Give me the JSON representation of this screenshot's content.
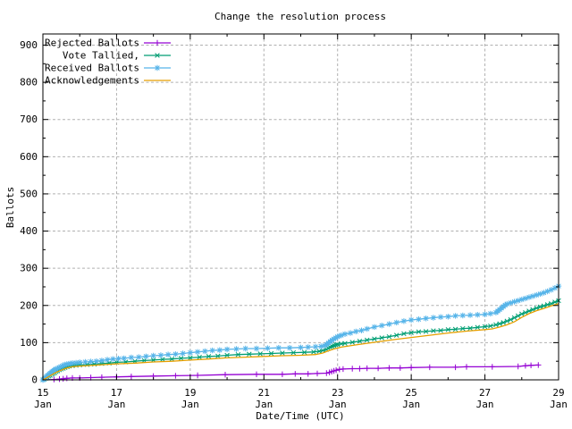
{
  "chart_data": {
    "type": "line",
    "title": "Change the resolution process",
    "xlabel": "Date/Time (UTC)",
    "ylabel": "Ballots",
    "xlim": [
      15,
      29
    ],
    "ylim": [
      0,
      930
    ],
    "grid": true,
    "legend_position": "top-left",
    "background": "#ffffff",
    "grid_color": "#b0b0b0",
    "x_ticks": [
      {
        "v": 15,
        "label": "15",
        "sublabel": "Jan"
      },
      {
        "v": 17,
        "label": "17",
        "sublabel": "Jan"
      },
      {
        "v": 19,
        "label": "19",
        "sublabel": "Jan"
      },
      {
        "v": 21,
        "label": "21",
        "sublabel": "Jan"
      },
      {
        "v": 23,
        "label": "23",
        "sublabel": "Jan"
      },
      {
        "v": 25,
        "label": "25",
        "sublabel": "Jan"
      },
      {
        "v": 27,
        "label": "27",
        "sublabel": "Jan"
      },
      {
        "v": 29,
        "label": "29",
        "sublabel": "Jan"
      }
    ],
    "x_minor_days": [
      16,
      18,
      20,
      22,
      24,
      26,
      28
    ],
    "x_grid_days": [
      17,
      19,
      21,
      23,
      25,
      27
    ],
    "y_ticks": [
      0,
      100,
      200,
      300,
      400,
      500,
      600,
      700,
      800,
      900
    ],
    "y_minor_ticks": [
      50,
      150,
      250,
      350,
      450,
      550,
      650,
      750,
      850
    ],
    "series": [
      {
        "name": "Rejected Ballots",
        "color": "#9400d3",
        "marker": "plus",
        "points": [
          [
            15.0,
            0
          ],
          [
            15.3,
            1
          ],
          [
            15.45,
            2
          ],
          [
            15.55,
            3
          ],
          [
            15.65,
            4
          ],
          [
            15.8,
            5
          ],
          [
            16.0,
            5
          ],
          [
            16.3,
            6
          ],
          [
            16.6,
            7
          ],
          [
            17.0,
            8
          ],
          [
            17.4,
            9
          ],
          [
            18.0,
            10
          ],
          [
            18.6,
            11
          ],
          [
            19.2,
            12
          ],
          [
            19.95,
            14
          ],
          [
            20.8,
            15
          ],
          [
            21.5,
            15
          ],
          [
            21.85,
            16
          ],
          [
            22.2,
            16
          ],
          [
            22.45,
            17
          ],
          [
            22.7,
            18
          ],
          [
            22.78,
            20
          ],
          [
            22.84,
            22
          ],
          [
            22.9,
            24
          ],
          [
            22.96,
            26
          ],
          [
            23.05,
            28
          ],
          [
            23.15,
            29
          ],
          [
            23.4,
            30
          ],
          [
            23.6,
            30
          ],
          [
            23.8,
            31
          ],
          [
            24.1,
            31
          ],
          [
            24.4,
            32
          ],
          [
            24.7,
            32
          ],
          [
            25.0,
            33
          ],
          [
            25.5,
            34
          ],
          [
            26.2,
            34
          ],
          [
            26.5,
            35
          ],
          [
            27.2,
            35
          ],
          [
            27.9,
            36
          ],
          [
            28.1,
            38
          ],
          [
            28.25,
            39
          ],
          [
            28.45,
            40
          ]
        ]
      },
      {
        "name": "Vote Tallied,",
        "color": "#009e73",
        "marker": "cross",
        "points": [
          [
            15.0,
            0
          ],
          [
            15.04,
            2
          ],
          [
            15.08,
            4
          ],
          [
            15.12,
            7
          ],
          [
            15.16,
            10
          ],
          [
            15.2,
            12
          ],
          [
            15.24,
            15
          ],
          [
            15.28,
            17
          ],
          [
            15.32,
            19
          ],
          [
            15.36,
            22
          ],
          [
            15.4,
            24
          ],
          [
            15.45,
            27
          ],
          [
            15.5,
            29
          ],
          [
            15.55,
            31
          ],
          [
            15.6,
            33
          ],
          [
            15.66,
            35
          ],
          [
            15.72,
            37
          ],
          [
            15.8,
            38
          ],
          [
            15.9,
            39
          ],
          [
            16.0,
            40
          ],
          [
            16.2,
            41
          ],
          [
            16.4,
            42
          ],
          [
            16.6,
            44
          ],
          [
            16.8,
            45
          ],
          [
            17.0,
            47
          ],
          [
            17.25,
            48
          ],
          [
            17.5,
            50
          ],
          [
            17.75,
            52
          ],
          [
            18.0,
            53
          ],
          [
            18.25,
            55
          ],
          [
            18.5,
            56
          ],
          [
            18.75,
            58
          ],
          [
            19.0,
            59
          ],
          [
            19.25,
            61
          ],
          [
            19.5,
            63
          ],
          [
            19.75,
            64
          ],
          [
            20.0,
            66
          ],
          [
            20.3,
            68
          ],
          [
            20.6,
            69
          ],
          [
            20.9,
            70
          ],
          [
            21.2,
            71
          ],
          [
            21.5,
            72
          ],
          [
            21.8,
            73
          ],
          [
            22.1,
            74
          ],
          [
            22.35,
            75
          ],
          [
            22.5,
            77
          ],
          [
            22.6,
            79
          ],
          [
            22.7,
            82
          ],
          [
            22.75,
            85
          ],
          [
            22.8,
            88
          ],
          [
            22.85,
            90
          ],
          [
            22.9,
            92
          ],
          [
            22.95,
            94
          ],
          [
            23.0,
            95
          ],
          [
            23.1,
            97
          ],
          [
            23.2,
            98
          ],
          [
            23.4,
            101
          ],
          [
            23.6,
            104
          ],
          [
            23.8,
            107
          ],
          [
            24.0,
            110
          ],
          [
            24.2,
            113
          ],
          [
            24.4,
            116
          ],
          [
            24.6,
            120
          ],
          [
            24.8,
            124
          ],
          [
            25.0,
            127
          ],
          [
            25.2,
            129
          ],
          [
            25.4,
            130
          ],
          [
            25.6,
            132
          ],
          [
            25.8,
            133
          ],
          [
            26.0,
            135
          ],
          [
            26.2,
            136
          ],
          [
            26.4,
            138
          ],
          [
            26.6,
            139
          ],
          [
            26.8,
            141
          ],
          [
            27.0,
            143
          ],
          [
            27.15,
            145
          ],
          [
            27.3,
            148
          ],
          [
            27.4,
            151
          ],
          [
            27.5,
            154
          ],
          [
            27.6,
            158
          ],
          [
            27.7,
            162
          ],
          [
            27.8,
            167
          ],
          [
            27.9,
            172
          ],
          [
            28.0,
            177
          ],
          [
            28.1,
            181
          ],
          [
            28.2,
            185
          ],
          [
            28.3,
            189
          ],
          [
            28.4,
            193
          ],
          [
            28.5,
            196
          ],
          [
            28.6,
            199
          ],
          [
            28.7,
            202
          ],
          [
            28.8,
            205
          ],
          [
            28.9,
            209
          ],
          [
            29.0,
            213
          ]
        ]
      },
      {
        "name": "Received Ballots",
        "color": "#56b4e9",
        "marker": "asterisk",
        "points": [
          [
            15.0,
            0
          ],
          [
            15.03,
            2
          ],
          [
            15.06,
            5
          ],
          [
            15.09,
            8
          ],
          [
            15.12,
            11
          ],
          [
            15.15,
            13
          ],
          [
            15.18,
            16
          ],
          [
            15.21,
            18
          ],
          [
            15.24,
            21
          ],
          [
            15.27,
            23
          ],
          [
            15.3,
            25
          ],
          [
            15.33,
            27
          ],
          [
            15.36,
            29
          ],
          [
            15.4,
            31
          ],
          [
            15.44,
            33
          ],
          [
            15.48,
            35
          ],
          [
            15.52,
            37
          ],
          [
            15.56,
            39
          ],
          [
            15.6,
            41
          ],
          [
            15.65,
            42
          ],
          [
            15.7,
            43
          ],
          [
            15.75,
            44
          ],
          [
            15.8,
            45
          ],
          [
            15.9,
            46
          ],
          [
            16.0,
            47
          ],
          [
            16.15,
            48
          ],
          [
            16.3,
            49
          ],
          [
            16.45,
            50
          ],
          [
            16.6,
            52
          ],
          [
            16.75,
            54
          ],
          [
            16.9,
            56
          ],
          [
            17.05,
            57
          ],
          [
            17.2,
            58
          ],
          [
            17.4,
            60
          ],
          [
            17.6,
            61
          ],
          [
            17.8,
            63
          ],
          [
            18.0,
            65
          ],
          [
            18.2,
            66
          ],
          [
            18.4,
            68
          ],
          [
            18.6,
            69
          ],
          [
            18.8,
            71
          ],
          [
            19.0,
            73
          ],
          [
            19.2,
            75
          ],
          [
            19.4,
            77
          ],
          [
            19.6,
            79
          ],
          [
            19.8,
            80
          ],
          [
            20.0,
            82
          ],
          [
            20.25,
            83
          ],
          [
            20.5,
            84
          ],
          [
            20.8,
            84
          ],
          [
            21.1,
            85
          ],
          [
            21.4,
            86
          ],
          [
            21.7,
            86
          ],
          [
            22.0,
            87
          ],
          [
            22.2,
            88
          ],
          [
            22.4,
            89
          ],
          [
            22.55,
            90
          ],
          [
            22.65,
            92
          ],
          [
            22.7,
            95
          ],
          [
            22.75,
            99
          ],
          [
            22.8,
            103
          ],
          [
            22.85,
            107
          ],
          [
            22.9,
            110
          ],
          [
            22.95,
            113
          ],
          [
            23.0,
            116
          ],
          [
            23.05,
            118
          ],
          [
            23.1,
            120
          ],
          [
            23.2,
            123
          ],
          [
            23.35,
            126
          ],
          [
            23.5,
            130
          ],
          [
            23.65,
            133
          ],
          [
            23.8,
            137
          ],
          [
            24.0,
            142
          ],
          [
            24.2,
            146
          ],
          [
            24.4,
            150
          ],
          [
            24.6,
            154
          ],
          [
            24.8,
            158
          ],
          [
            25.0,
            161
          ],
          [
            25.2,
            163
          ],
          [
            25.4,
            165
          ],
          [
            25.6,
            167
          ],
          [
            25.8,
            169
          ],
          [
            26.0,
            170
          ],
          [
            26.2,
            172
          ],
          [
            26.4,
            173
          ],
          [
            26.6,
            174
          ],
          [
            26.8,
            175
          ],
          [
            27.0,
            176
          ],
          [
            27.15,
            178
          ],
          [
            27.3,
            181
          ],
          [
            27.35,
            185
          ],
          [
            27.4,
            189
          ],
          [
            27.45,
            193
          ],
          [
            27.5,
            197
          ],
          [
            27.55,
            201
          ],
          [
            27.6,
            204
          ],
          [
            27.7,
            207
          ],
          [
            27.8,
            210
          ],
          [
            27.9,
            213
          ],
          [
            28.0,
            216
          ],
          [
            28.1,
            219
          ],
          [
            28.2,
            222
          ],
          [
            28.3,
            225
          ],
          [
            28.4,
            228
          ],
          [
            28.5,
            231
          ],
          [
            28.6,
            234
          ],
          [
            28.7,
            238
          ],
          [
            28.8,
            242
          ],
          [
            28.9,
            247
          ],
          [
            29.0,
            252
          ]
        ]
      },
      {
        "name": "Acknowledgements",
        "color": "#e69f00",
        "marker": "none",
        "points": [
          [
            15.0,
            0
          ],
          [
            15.1,
            5
          ],
          [
            15.2,
            11
          ],
          [
            15.3,
            17
          ],
          [
            15.4,
            22
          ],
          [
            15.5,
            26
          ],
          [
            15.6,
            30
          ],
          [
            15.7,
            33
          ],
          [
            15.8,
            35
          ],
          [
            16.0,
            37
          ],
          [
            16.5,
            40
          ],
          [
            17.0,
            43
          ],
          [
            17.5,
            45
          ],
          [
            18.0,
            48
          ],
          [
            18.5,
            50
          ],
          [
            19.0,
            53
          ],
          [
            19.5,
            56
          ],
          [
            20.0,
            59
          ],
          [
            20.5,
            61
          ],
          [
            21.0,
            63
          ],
          [
            21.5,
            65
          ],
          [
            22.0,
            66
          ],
          [
            22.4,
            68
          ],
          [
            22.6,
            72
          ],
          [
            22.75,
            78
          ],
          [
            22.9,
            83
          ],
          [
            23.1,
            88
          ],
          [
            23.5,
            94
          ],
          [
            24.0,
            101
          ],
          [
            24.5,
            108
          ],
          [
            25.0,
            114
          ],
          [
            25.5,
            120
          ],
          [
            26.0,
            126
          ],
          [
            26.5,
            131
          ],
          [
            27.0,
            135
          ],
          [
            27.2,
            137
          ],
          [
            27.4,
            142
          ],
          [
            27.6,
            148
          ],
          [
            27.8,
            156
          ],
          [
            28.0,
            168
          ],
          [
            28.2,
            178
          ],
          [
            28.4,
            186
          ],
          [
            28.6,
            192
          ],
          [
            28.8,
            199
          ],
          [
            29.0,
            205
          ]
        ]
      }
    ]
  }
}
